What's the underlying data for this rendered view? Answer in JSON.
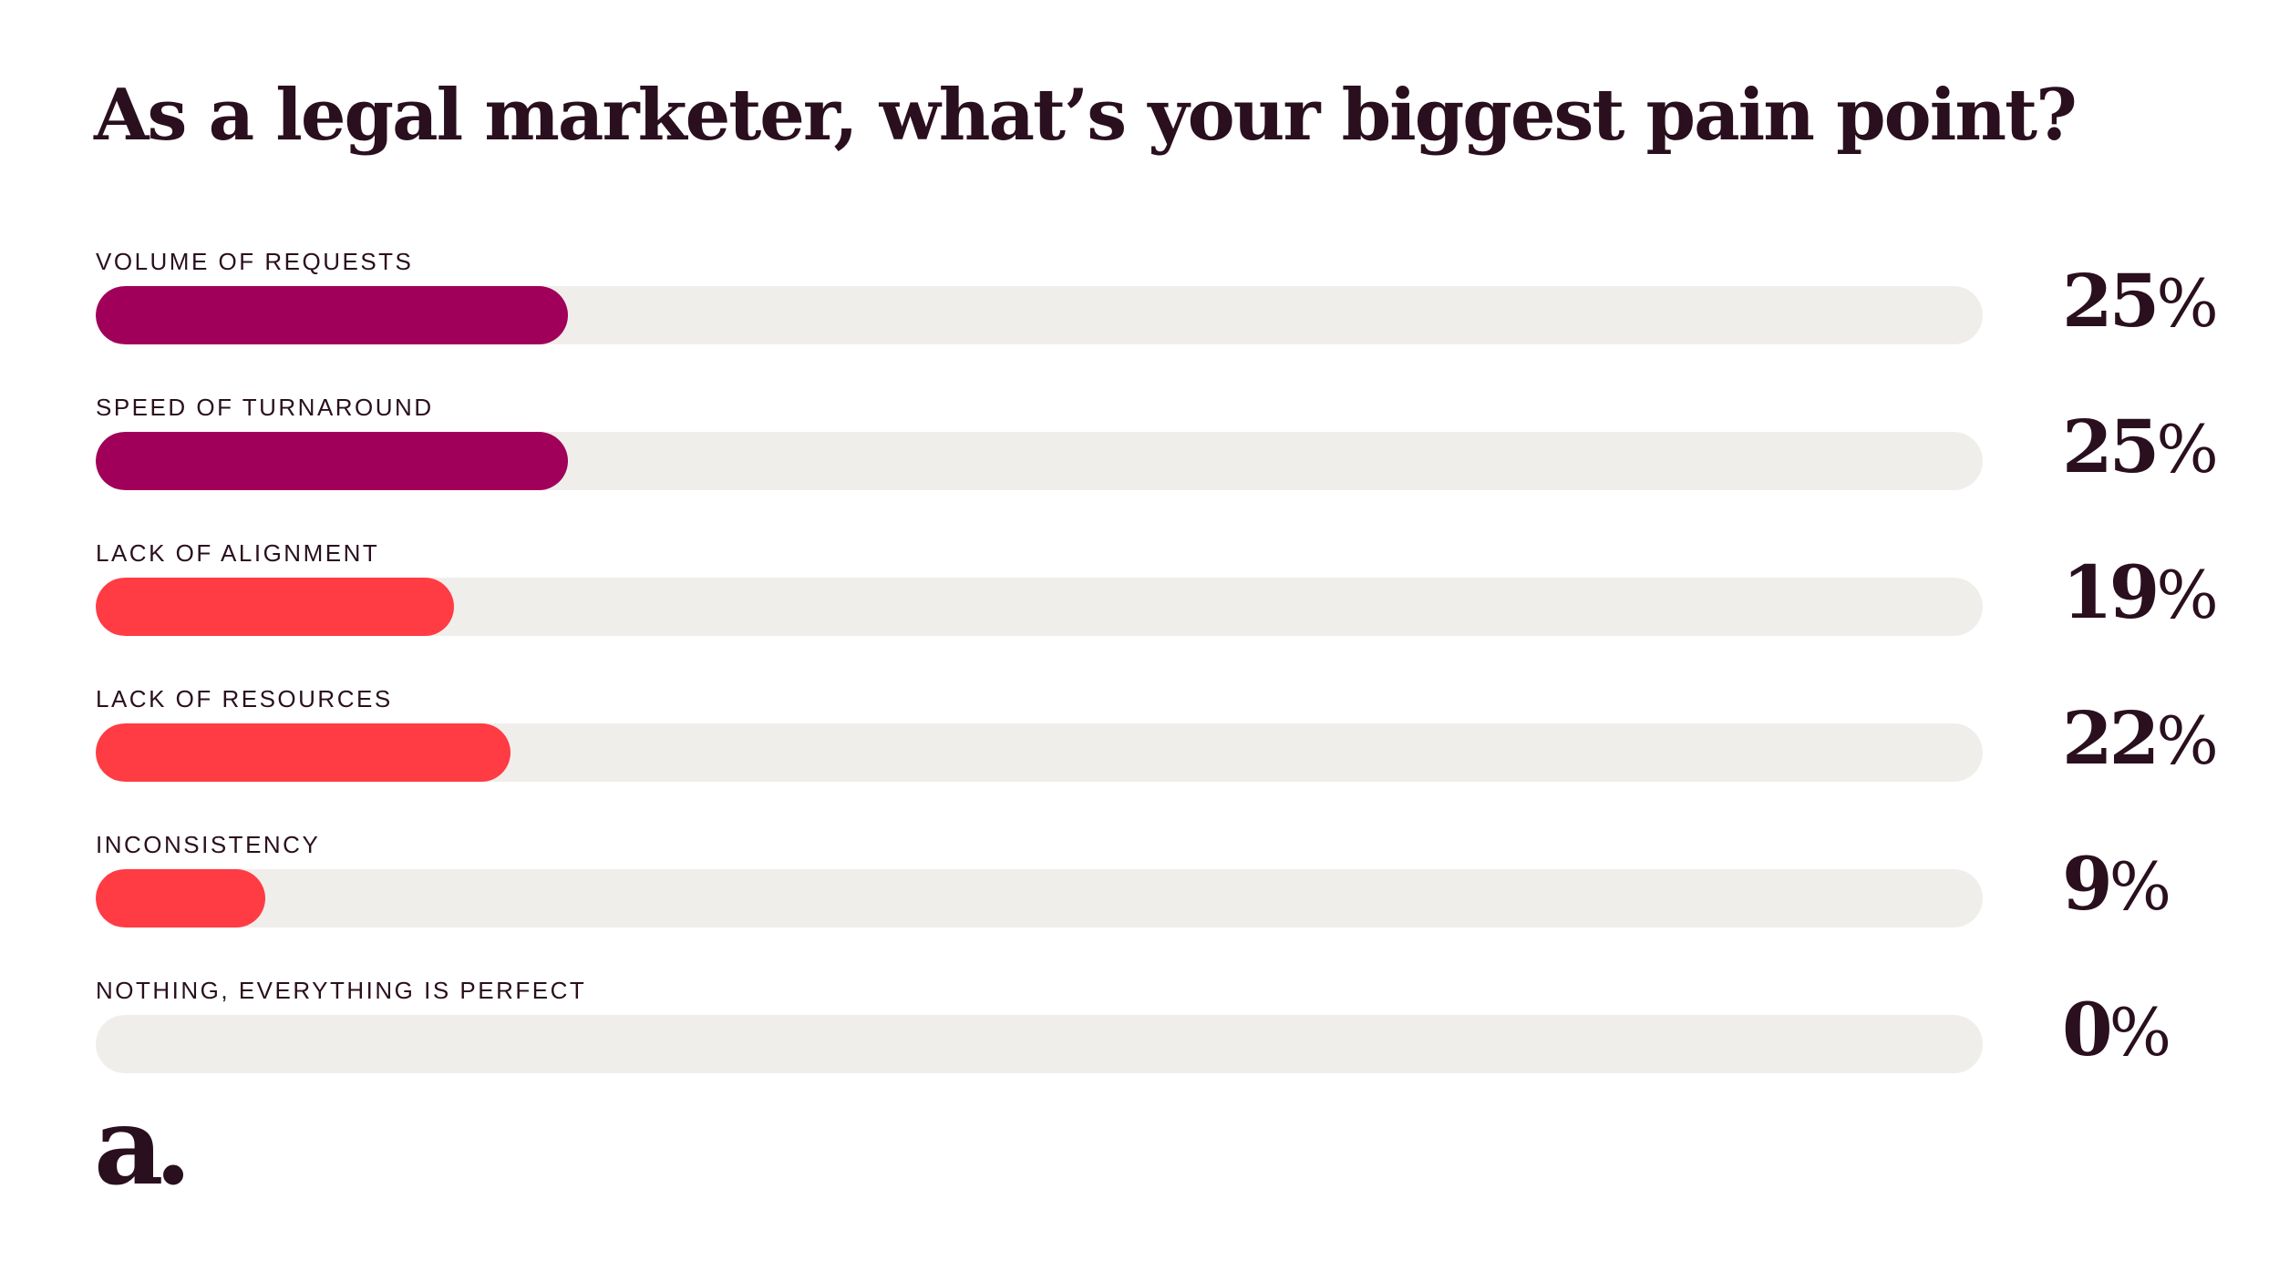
{
  "title": "As a legal marketer, what’s your biggest pain point?",
  "colors": {
    "track": "#f0eeeb",
    "plum": "#a0005a",
    "coral": "#ff3b44",
    "text": "#2a0f1e"
  },
  "logo": {
    "icon": "lowercase-a-logo-icon",
    "text": "a."
  },
  "chart_data": {
    "type": "bar",
    "orientation": "horizontal",
    "title": "As a legal marketer, what’s your biggest pain point?",
    "categories": [
      "VOLUME OF REQUESTS",
      "SPEED OF TURNAROUND",
      "LACK OF ALIGNMENT",
      "LACK OF RESOURCES",
      "INCONSISTENCY",
      "NOTHING, EVERYTHING IS PERFECT"
    ],
    "values": [
      25,
      25,
      19,
      22,
      9,
      0
    ],
    "value_labels": [
      "25",
      "25",
      "19",
      "22",
      "9",
      "0"
    ],
    "unit": "%",
    "bar_colors": [
      "#a0005a",
      "#a0005a",
      "#ff3b44",
      "#ff3b44",
      "#ff3b44",
      "#ff3b44"
    ],
    "xlim": [
      0,
      100
    ],
    "grid": false,
    "legend": "none"
  }
}
